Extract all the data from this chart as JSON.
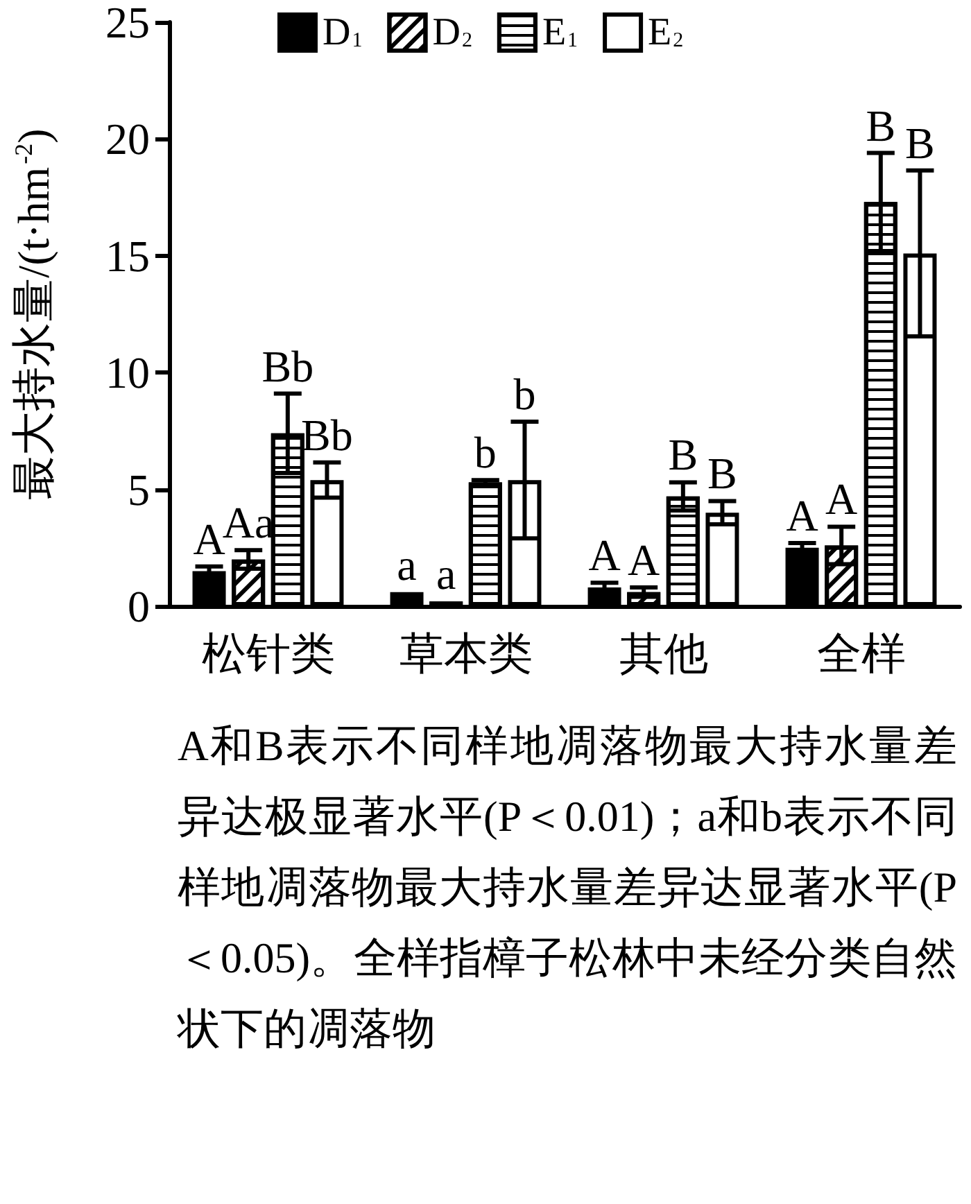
{
  "chart_data": {
    "type": "bar",
    "ylabel": "最大持水量/(t·hm$^{-2}$)",
    "categories": [
      "松针类",
      "草本类",
      "其他",
      "全样"
    ],
    "series": [
      {
        "name": "D$_{1}$",
        "color": "#000000",
        "values": [
          1.5,
          0.6,
          0.8,
          2.5
        ],
        "errors": [
          0.2,
          null,
          0.2,
          0.2
        ],
        "value_labels": [
          "A",
          "a",
          "A",
          "A"
        ]
      },
      {
        "name": "D$_{2}$",
        "color": "#ffffff",
        "values": [
          2.0,
          0.2,
          0.6,
          2.6
        ],
        "errors": [
          0.4,
          null,
          0.2,
          0.8
        ],
        "value_labels": [
          "Aa",
          "a",
          "A",
          "A"
        ]
      },
      {
        "name": "E$_{1}$",
        "color": "#ffffff",
        "values": [
          7.4,
          5.3,
          4.7,
          17.3
        ],
        "errors": [
          1.7,
          0.1,
          0.6,
          2.1
        ],
        "value_labels": [
          "Bb",
          "b",
          "B",
          "B"
        ]
      },
      {
        "name": "E$_{2}$",
        "color": "#ffffff",
        "values": [
          5.4,
          5.4,
          4.0,
          15.1
        ],
        "errors": [
          0.75,
          2.5,
          0.5,
          3.55
        ],
        "value_labels": [
          "Bb",
          "b",
          "B",
          "B"
        ]
      }
    ],
    "ylim": [
      0,
      25
    ],
    "yticks": [
      0,
      5,
      10,
      15,
      20,
      25
    ],
    "grid": false,
    "legend": "top",
    "annotations": [
      "A和B表示不同样地凋落物最大持水量差异达极显著水平(P＜0.01)；a和b表示不同样地凋落物最大持水量差异达显著水平(P＜0.05)。全样指樟子松林中未经分类自然状下的凋落物"
    ]
  }
}
